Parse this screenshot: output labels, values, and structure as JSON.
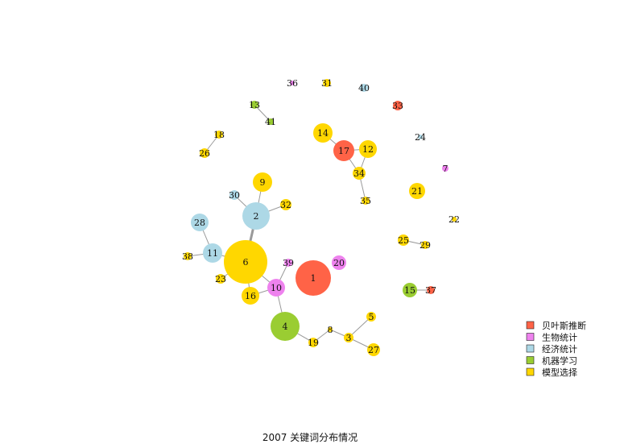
{
  "caption": "2007 关键词分布情况",
  "legend": [
    {
      "label": "贝叶斯推断",
      "color": "#FF6347"
    },
    {
      "label": "生物统计",
      "color": "#EE82EE"
    },
    {
      "label": "经济统计",
      "color": "#ADD8E6"
    },
    {
      "label": "机器学习",
      "color": "#9ACD32"
    },
    {
      "label": "模型选择",
      "color": "#FFD700"
    }
  ],
  "nodes": [
    {
      "id": "1",
      "category": "贝叶斯推断",
      "color": "#FF6347"
    },
    {
      "id": "2",
      "category": "经济统计",
      "color": "#ADD8E6"
    },
    {
      "id": "3",
      "category": "模型选择",
      "color": "#FFD700"
    },
    {
      "id": "4",
      "category": "机器学习",
      "color": "#9ACD32"
    },
    {
      "id": "5",
      "category": "模型选择",
      "color": "#FFD700"
    },
    {
      "id": "6",
      "category": "模型选择",
      "color": "#FFD700"
    },
    {
      "id": "7",
      "category": "生物统计",
      "color": "#EE82EE"
    },
    {
      "id": "8",
      "category": "模型选择",
      "color": "#FFD700"
    },
    {
      "id": "9",
      "category": "模型选择",
      "color": "#FFD700"
    },
    {
      "id": "10",
      "category": "生物统计",
      "color": "#EE82EE"
    },
    {
      "id": "11",
      "category": "经济统计",
      "color": "#ADD8E6"
    },
    {
      "id": "12",
      "category": "模型选择",
      "color": "#FFD700"
    },
    {
      "id": "13",
      "category": "机器学习",
      "color": "#9ACD32"
    },
    {
      "id": "14",
      "category": "模型选择",
      "color": "#FFD700"
    },
    {
      "id": "15",
      "category": "机器学习",
      "color": "#9ACD32"
    },
    {
      "id": "16",
      "category": "模型选择",
      "color": "#FFD700"
    },
    {
      "id": "17",
      "category": "贝叶斯推断",
      "color": "#FF6347"
    },
    {
      "id": "18",
      "category": "模型选择",
      "color": "#FFD700"
    },
    {
      "id": "19",
      "category": "模型选择",
      "color": "#FFD700"
    },
    {
      "id": "20",
      "category": "生物统计",
      "color": "#EE82EE"
    },
    {
      "id": "21",
      "category": "模型选择",
      "color": "#FFD700"
    },
    {
      "id": "22",
      "category": "模型选择",
      "color": "#FFD700"
    },
    {
      "id": "23",
      "category": "模型选择",
      "color": "#FFD700"
    },
    {
      "id": "24",
      "category": "经济统计",
      "color": "#ADD8E6"
    },
    {
      "id": "25",
      "category": "模型选择",
      "color": "#FFD700"
    },
    {
      "id": "26",
      "category": "模型选择",
      "color": "#FFD700"
    },
    {
      "id": "27",
      "category": "模型选择",
      "color": "#FFD700"
    },
    {
      "id": "28",
      "category": "经济统计",
      "color": "#ADD8E6"
    },
    {
      "id": "29",
      "category": "模型选择",
      "color": "#FFD700"
    },
    {
      "id": "30",
      "category": "经济统计",
      "color": "#ADD8E6"
    },
    {
      "id": "31",
      "category": "模型选择",
      "color": "#FFD700"
    },
    {
      "id": "32",
      "category": "模型选择",
      "color": "#FFD700"
    },
    {
      "id": "33",
      "category": "贝叶斯推断",
      "color": "#FF6347"
    },
    {
      "id": "34",
      "category": "模型选择",
      "color": "#FFD700"
    },
    {
      "id": "35",
      "category": "模型选择",
      "color": "#FFD700"
    },
    {
      "id": "36",
      "category": "生物统计",
      "color": "#EE82EE"
    },
    {
      "id": "37",
      "category": "贝叶斯推断",
      "color": "#FF6347"
    },
    {
      "id": "38",
      "category": "模型选择",
      "color": "#FFD700"
    },
    {
      "id": "39",
      "category": "生物统计",
      "color": "#EE82EE"
    },
    {
      "id": "40",
      "category": "经济统计",
      "color": "#ADD8E6"
    },
    {
      "id": "41",
      "category": "机器学习",
      "color": "#9ACD32"
    }
  ],
  "edges": [
    [
      "2",
      "6"
    ],
    [
      "2",
      "9"
    ],
    [
      "2",
      "30"
    ],
    [
      "2",
      "32"
    ],
    [
      "6",
      "11"
    ],
    [
      "6",
      "23"
    ],
    [
      "6",
      "10"
    ],
    [
      "6",
      "16"
    ],
    [
      "11",
      "28"
    ],
    [
      "11",
      "38"
    ],
    [
      "10",
      "39"
    ],
    [
      "10",
      "4"
    ],
    [
      "10",
      "16"
    ],
    [
      "4",
      "19"
    ],
    [
      "19",
      "8"
    ],
    [
      "8",
      "3"
    ],
    [
      "3",
      "5"
    ],
    [
      "3",
      "27"
    ],
    [
      "13",
      "41"
    ],
    [
      "18",
      "26"
    ],
    [
      "14",
      "17"
    ],
    [
      "17",
      "12"
    ],
    [
      "17",
      "34"
    ],
    [
      "12",
      "34"
    ],
    [
      "34",
      "35"
    ],
    [
      "15",
      "37"
    ],
    [
      "25",
      "29"
    ]
  ]
}
